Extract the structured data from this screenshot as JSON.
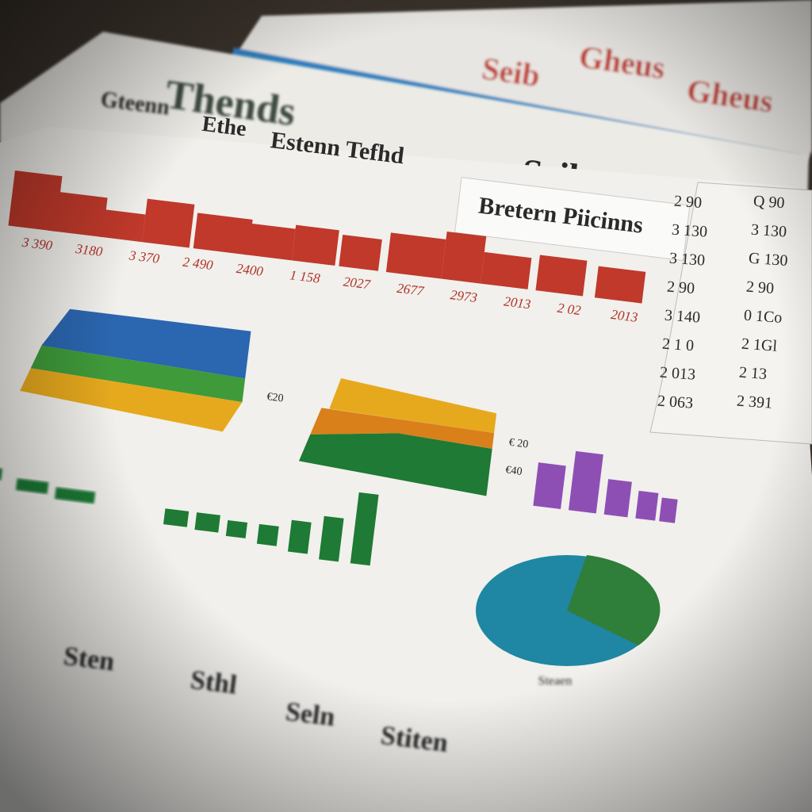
{
  "back_sheet": {
    "labels": [
      "Gheus",
      "Seib",
      "Gheus"
    ]
  },
  "middle_sheet": {
    "title": "Thends",
    "heading": "Seib"
  },
  "main_sheet": {
    "headings": [
      "Gteenn",
      "Ethe",
      "Estenn Tefhd"
    ],
    "subheading": "Bretern Piicinns",
    "bar_labels": [
      "3 390",
      "3180",
      "3 370",
      "2 490",
      "2400",
      "1 158",
      "2027",
      "2677",
      "2973",
      "2013",
      "2 02",
      "2013"
    ],
    "area_labels": [
      "€20",
      "€ 20",
      "€40"
    ],
    "pie_caption": "Steaen"
  },
  "side_table": {
    "rows": [
      [
        "2 90",
        "Q 90"
      ],
      [
        "3 130",
        "3 130"
      ],
      [
        "3 130",
        "G 130"
      ],
      [
        "2 90",
        "2 90"
      ],
      [
        "3 140",
        "0 1Co"
      ],
      [
        "2 1 0",
        "2 1Gl"
      ],
      [
        "2 013",
        "2 13"
      ],
      [
        "2 063",
        "2 391"
      ]
    ]
  },
  "footer_labels": [
    "Sten",
    "Sthl",
    "Seln",
    "Stiten"
  ]
}
